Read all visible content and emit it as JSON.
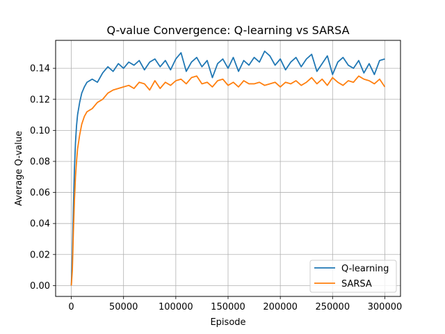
{
  "chart_data": {
    "type": "line",
    "title": "Q-value Convergence: Q-learning vs SARSA",
    "xlabel": "Episode",
    "ylabel": "Average Q-value",
    "xlim": [
      -15000,
      315000
    ],
    "ylim": [
      -0.007,
      0.158
    ],
    "xticks": [
      0,
      50000,
      100000,
      150000,
      200000,
      250000,
      300000
    ],
    "xtick_labels": [
      "0",
      "50000",
      "100000",
      "150000",
      "200000",
      "250000",
      "300000"
    ],
    "yticks": [
      0.0,
      0.02,
      0.04,
      0.06,
      0.08,
      0.1,
      0.12,
      0.14
    ],
    "ytick_labels": [
      "0.00",
      "0.02",
      "0.04",
      "0.06",
      "0.08",
      "0.10",
      "0.12",
      "0.14"
    ],
    "grid": true,
    "legend_position": "bottom-right",
    "x": [
      0,
      1000,
      2000,
      3000,
      4000,
      5000,
      6000,
      8000,
      10000,
      12500,
      15000,
      20000,
      25000,
      30000,
      35000,
      40000,
      45000,
      50000,
      55000,
      60000,
      65000,
      70000,
      75000,
      80000,
      85000,
      90000,
      95000,
      100000,
      105000,
      110000,
      115000,
      120000,
      125000,
      130000,
      135000,
      140000,
      145000,
      150000,
      155000,
      160000,
      165000,
      170000,
      175000,
      180000,
      185000,
      190000,
      195000,
      200000,
      205000,
      210000,
      215000,
      220000,
      225000,
      230000,
      235000,
      240000,
      245000,
      250000,
      255000,
      260000,
      265000,
      270000,
      275000,
      280000,
      285000,
      290000,
      295000,
      300000
    ],
    "series": [
      {
        "name": "Q-learning",
        "color": "#1f77b4",
        "values": [
          0.0,
          0.02,
          0.05,
          0.075,
          0.092,
          0.103,
          0.11,
          0.118,
          0.124,
          0.128,
          0.131,
          0.133,
          0.131,
          0.137,
          0.141,
          0.138,
          0.143,
          0.14,
          0.144,
          0.142,
          0.145,
          0.139,
          0.144,
          0.146,
          0.141,
          0.145,
          0.139,
          0.146,
          0.15,
          0.138,
          0.144,
          0.147,
          0.141,
          0.145,
          0.134,
          0.143,
          0.146,
          0.14,
          0.147,
          0.138,
          0.145,
          0.142,
          0.147,
          0.144,
          0.151,
          0.148,
          0.142,
          0.146,
          0.139,
          0.144,
          0.147,
          0.141,
          0.146,
          0.149,
          0.138,
          0.143,
          0.148,
          0.136,
          0.144,
          0.147,
          0.142,
          0.14,
          0.145,
          0.137,
          0.143,
          0.136,
          0.145,
          0.146
        ]
      },
      {
        "name": "SARSA",
        "color": "#ff7f0e",
        "values": [
          0.0,
          0.01,
          0.035,
          0.055,
          0.07,
          0.08,
          0.088,
          0.097,
          0.104,
          0.109,
          0.112,
          0.114,
          0.118,
          0.12,
          0.124,
          0.126,
          0.127,
          0.128,
          0.129,
          0.127,
          0.131,
          0.13,
          0.126,
          0.132,
          0.127,
          0.131,
          0.129,
          0.132,
          0.133,
          0.13,
          0.134,
          0.135,
          0.13,
          0.131,
          0.128,
          0.132,
          0.133,
          0.129,
          0.131,
          0.128,
          0.132,
          0.13,
          0.13,
          0.131,
          0.129,
          0.13,
          0.131,
          0.128,
          0.131,
          0.13,
          0.132,
          0.129,
          0.131,
          0.134,
          0.13,
          0.133,
          0.129,
          0.134,
          0.131,
          0.129,
          0.132,
          0.131,
          0.135,
          0.133,
          0.132,
          0.13,
          0.133,
          0.128
        ]
      }
    ]
  }
}
